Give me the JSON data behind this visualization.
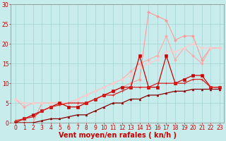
{
  "bg_color": "#c8ecec",
  "grid_color": "#a8d8d8",
  "xlabel": "Vent moyen/en rafales ( kn/h )",
  "xlabel_color": "#cc0000",
  "xlabel_fontsize": 7,
  "tick_color": "#cc0000",
  "tick_fontsize": 5.5,
  "xlim": [
    -0.5,
    23.5
  ],
  "ylim": [
    0,
    30
  ],
  "yticks": [
    0,
    5,
    10,
    15,
    20,
    25,
    30
  ],
  "xticks": [
    0,
    1,
    2,
    3,
    4,
    5,
    6,
    7,
    8,
    9,
    10,
    11,
    12,
    13,
    14,
    15,
    16,
    17,
    18,
    19,
    20,
    21,
    22,
    23
  ],
  "lines": [
    {
      "x": [
        0,
        1,
        2,
        3,
        4,
        5,
        6,
        7,
        8,
        9,
        10,
        11,
        12,
        13,
        14,
        15,
        16,
        17,
        18,
        19,
        20,
        21,
        22,
        23
      ],
      "y": [
        0,
        0,
        0,
        5,
        5,
        5,
        5,
        5,
        5,
        6,
        7,
        8,
        9,
        10,
        11,
        28,
        27,
        26,
        21,
        22,
        22,
        16,
        19,
        19
      ],
      "color": "#ff9999",
      "lw": 0.8,
      "marker": "D",
      "ms": 2.0
    },
    {
      "x": [
        0,
        1,
        2,
        3,
        4,
        5,
        6,
        7,
        8,
        9,
        10,
        11,
        12,
        13,
        14,
        15,
        16,
        17,
        18,
        19,
        20,
        21,
        22,
        23
      ],
      "y": [
        6,
        4,
        5,
        5,
        5,
        5,
        5,
        6,
        7,
        8,
        9,
        10,
        11,
        13,
        15,
        16,
        17,
        22,
        16,
        19,
        17,
        15,
        19,
        19
      ],
      "color": "#ffaaaa",
      "lw": 0.8,
      "marker": "D",
      "ms": 2.0
    },
    {
      "x": [
        0,
        1,
        2,
        3,
        4,
        5,
        6,
        7,
        8,
        9,
        10,
        11,
        12,
        13,
        14,
        15,
        16,
        17,
        18,
        19,
        20,
        21,
        22,
        23
      ],
      "y": [
        6,
        5,
        5,
        5,
        5,
        5,
        5,
        6,
        7,
        8,
        9,
        10,
        11,
        12,
        14,
        15,
        16,
        18,
        18,
        19,
        20,
        19,
        19,
        19
      ],
      "color": "#ffcccc",
      "lw": 0.8,
      "marker": "D",
      "ms": 2.0
    },
    {
      "x": [
        0,
        1,
        2,
        3,
        4,
        5,
        6,
        7,
        8,
        9,
        10,
        11,
        12,
        13,
        14,
        15,
        16,
        17,
        18,
        19,
        20,
        21,
        22,
        23
      ],
      "y": [
        0,
        1,
        2,
        3,
        4,
        5,
        4,
        4,
        5,
        6,
        7,
        8,
        9,
        9,
        17,
        9,
        9,
        17,
        10,
        11,
        12,
        12,
        9,
        9
      ],
      "color": "#cc0000",
      "lw": 0.9,
      "marker": "s",
      "ms": 2.2
    },
    {
      "x": [
        0,
        1,
        2,
        3,
        4,
        5,
        6,
        7,
        8,
        9,
        10,
        11,
        12,
        13,
        14,
        15,
        16,
        17,
        18,
        19,
        20,
        21,
        22,
        23
      ],
      "y": [
        0.5,
        1,
        1.5,
        3,
        4,
        4.5,
        5,
        5,
        5,
        6,
        7,
        7,
        8,
        9,
        9,
        9,
        10,
        10,
        10,
        10,
        11,
        11,
        9,
        9
      ],
      "color": "#dd2222",
      "lw": 0.9,
      "marker": "+",
      "ms": 2.5
    },
    {
      "x": [
        0,
        1,
        2,
        3,
        4,
        5,
        6,
        7,
        8,
        9,
        10,
        11,
        12,
        13,
        14,
        15,
        16,
        17,
        18,
        19,
        20,
        21,
        22,
        23
      ],
      "y": [
        0,
        0,
        0,
        0.5,
        1,
        1,
        1.5,
        2,
        2,
        3,
        4,
        5,
        5,
        6,
        6,
        7,
        7,
        7.5,
        8,
        8,
        8.5,
        8.5,
        8.5,
        8.5
      ],
      "color": "#880000",
      "lw": 0.9,
      "marker": "^",
      "ms": 2.0
    }
  ]
}
